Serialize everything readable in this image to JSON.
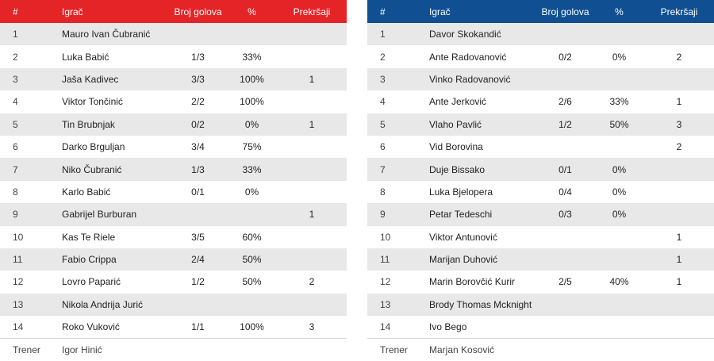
{
  "columns": {
    "num": "#",
    "player": "Igrač",
    "goals": "Broj golova",
    "pct": "%",
    "fouls": "Prekršaji"
  },
  "home": {
    "accent": "#e42427",
    "rows": [
      {
        "num": "1",
        "name": "Mauro Ivan Čubranić",
        "goals": "",
        "pct": "",
        "fouls": ""
      },
      {
        "num": "2",
        "name": "Luka Babić",
        "goals": "1/3",
        "pct": "33%",
        "fouls": ""
      },
      {
        "num": "3",
        "name": "Jaša Kadivec",
        "goals": "3/3",
        "pct": "100%",
        "fouls": "1"
      },
      {
        "num": "4",
        "name": "Viktor Tončinić",
        "goals": "2/2",
        "pct": "100%",
        "fouls": ""
      },
      {
        "num": "5",
        "name": "Tin Brubnjak",
        "goals": "0/2",
        "pct": "0%",
        "fouls": "1"
      },
      {
        "num": "6",
        "name": "Darko Brguljan",
        "goals": "3/4",
        "pct": "75%",
        "fouls": ""
      },
      {
        "num": "7",
        "name": "Niko Čubranić",
        "goals": "1/3",
        "pct": "33%",
        "fouls": ""
      },
      {
        "num": "8",
        "name": "Karlo Babić",
        "goals": "0/1",
        "pct": "0%",
        "fouls": ""
      },
      {
        "num": "9",
        "name": "Gabrijel Burburan",
        "goals": "",
        "pct": "",
        "fouls": "1"
      },
      {
        "num": "10",
        "name": "Kas Te Riele",
        "goals": "3/5",
        "pct": "60%",
        "fouls": ""
      },
      {
        "num": "11",
        "name": "Fabio Crippa",
        "goals": "2/4",
        "pct": "50%",
        "fouls": ""
      },
      {
        "num": "12",
        "name": "Lovro Paparić",
        "goals": "1/2",
        "pct": "50%",
        "fouls": "2"
      },
      {
        "num": "13",
        "name": "Nikola Andrija Jurić",
        "goals": "",
        "pct": "",
        "fouls": ""
      },
      {
        "num": "14",
        "name": "Roko Vuković",
        "goals": "1/1",
        "pct": "100%",
        "fouls": "3"
      }
    ],
    "coach_label": "Trener",
    "coach_name": "Igor Hinić"
  },
  "away": {
    "accent": "#0f4f92",
    "rows": [
      {
        "num": "1",
        "name": "Davor Skokandić",
        "goals": "",
        "pct": "",
        "fouls": ""
      },
      {
        "num": "2",
        "name": "Ante Radovanović",
        "goals": "0/2",
        "pct": "0%",
        "fouls": "2"
      },
      {
        "num": "3",
        "name": "Vinko Radovanović",
        "goals": "",
        "pct": "",
        "fouls": ""
      },
      {
        "num": "4",
        "name": "Ante Jerković",
        "goals": "2/6",
        "pct": "33%",
        "fouls": "1"
      },
      {
        "num": "5",
        "name": "Vlaho Pavlić",
        "goals": "1/2",
        "pct": "50%",
        "fouls": "3"
      },
      {
        "num": "6",
        "name": "Vid Borovina",
        "goals": "",
        "pct": "",
        "fouls": "2"
      },
      {
        "num": "7",
        "name": "Duje Bissako",
        "goals": "0/1",
        "pct": "0%",
        "fouls": ""
      },
      {
        "num": "8",
        "name": "Luka Bjelopera",
        "goals": "0/4",
        "pct": "0%",
        "fouls": ""
      },
      {
        "num": "9",
        "name": "Petar Tedeschi",
        "goals": "0/3",
        "pct": "0%",
        "fouls": ""
      },
      {
        "num": "10",
        "name": "Viktor Antunović",
        "goals": "",
        "pct": "",
        "fouls": "1"
      },
      {
        "num": "11",
        "name": "Marijan Duhović",
        "goals": "",
        "pct": "",
        "fouls": "1"
      },
      {
        "num": "12",
        "name": "Marin Borovčić Kurir",
        "goals": "2/5",
        "pct": "40%",
        "fouls": "1"
      },
      {
        "num": "13",
        "name": "Brody Thomas Mcknight",
        "goals": "",
        "pct": "",
        "fouls": ""
      },
      {
        "num": "14",
        "name": "Ivo Bego",
        "goals": "",
        "pct": "",
        "fouls": ""
      }
    ],
    "coach_label": "Trener",
    "coach_name": "Marjan Kosović"
  }
}
